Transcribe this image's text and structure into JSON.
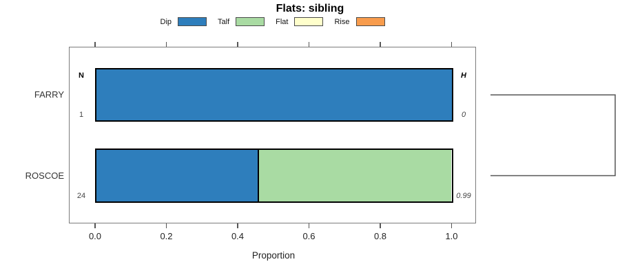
{
  "title": "Flats: sibling",
  "legend": {
    "items": [
      {
        "label": "Dip",
        "color": "#2e7ebc"
      },
      {
        "label": "Talf",
        "color": "#a9dba3"
      },
      {
        "label": "Flat",
        "color": "#ffffcc"
      },
      {
        "label": "Rise",
        "color": "#f89c4d"
      }
    ]
  },
  "stats": {
    "n_header": "N",
    "h_header": "H"
  },
  "chart_data": {
    "type": "bar",
    "orientation": "horizontal-stacked",
    "title": "Flats: sibling",
    "xlabel": "Proportion",
    "xlim": [
      0,
      1
    ],
    "x_ticks": [
      0.0,
      0.2,
      0.4,
      0.6,
      0.8,
      1.0
    ],
    "x_tick_labels": [
      "0.0",
      "0.2",
      "0.4",
      "0.6",
      "0.8",
      "1.0"
    ],
    "categories": [
      "FARRY",
      "ROSCOE"
    ],
    "series": [
      {
        "name": "Dip",
        "color": "#2e7ebc",
        "values": [
          1.0,
          0.458
        ]
      },
      {
        "name": "Talf",
        "color": "#a9dba3",
        "values": [
          0.0,
          0.542
        ]
      },
      {
        "name": "Flat",
        "color": "#ffffcc",
        "values": [
          0.0,
          0.0
        ]
      },
      {
        "name": "Rise",
        "color": "#f89c4d",
        "values": [
          0.0,
          0.0
        ]
      }
    ],
    "row_n": [
      "1",
      "24"
    ],
    "row_h": [
      "0",
      "0.99"
    ],
    "legend_position": "top",
    "grid": false,
    "dendrogram_bracket_rows": [
      "FARRY",
      "ROSCOE"
    ]
  }
}
